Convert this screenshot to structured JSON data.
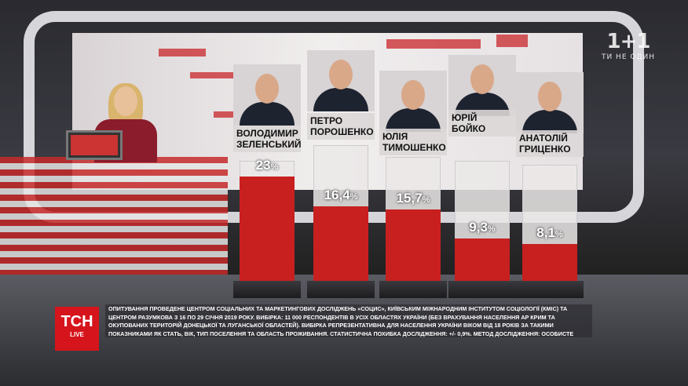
{
  "channel_logo": {
    "text": "1+1",
    "tagline": "ТИ НЕ ОДИН"
  },
  "news_logo": {
    "text": "ТСН",
    "sub": "LIVE"
  },
  "colors": {
    "bar": "#c8201f",
    "accent": "#d6141c"
  },
  "chart_data": {
    "type": "bar",
    "categories": [
      "Володимир Зеленський",
      "Петро Порошенко",
      "Юлія Тимошенко",
      "Юрій Бойко",
      "Анатолій Гриценко"
    ],
    "values": [
      23,
      16.4,
      15.7,
      9.3,
      8.1
    ],
    "labels": [
      "23",
      "16,4",
      "15,7",
      "9,3",
      "8,1"
    ],
    "unit": "%",
    "names": [
      [
        "Володимир",
        "Зеленський"
      ],
      [
        "Петро",
        "Порошенко"
      ],
      [
        "Юлія",
        "Тимошенко"
      ],
      [
        "Юрій",
        "Бойко"
      ],
      [
        "Анатолій",
        "Гриценко"
      ]
    ]
  },
  "footnote": "Опитування проведене Центром соціальних та маркетингових досліджень «СОЦИС», Київським міжнародним інститутом соціології (КМІС) та Центром Разумкова з 16 по 29 січня 2019 року. Вибірка: 11 000 респондентів в усіх областях України (без врахування населення АР Крим та окупованих територій Донецької та Луганської областей). Вибірка репрезентативна для населення України віком від 18 років за такими показниками як стать, вік, тип поселення та область проживання. Статистична похибка дослідження: +/- 0,9%. Метод дослідження: особисте формалізоване інтерв'ю (face-to-face) за місцем проживання респондента."
}
